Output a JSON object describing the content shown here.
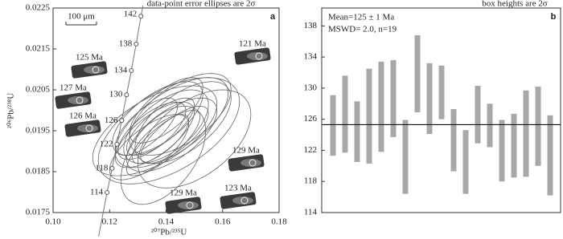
{
  "chart_data": [
    {
      "type": "concordia",
      "title": "data-point error ellipses are 2σ",
      "panel_label": "a",
      "xlabel": "²⁰⁷Pb/²³⁵U",
      "ylabel": "²⁰⁶Pb/²³⁸U",
      "xlim": [
        0.1,
        0.18
      ],
      "ylim": [
        0.0175,
        0.0225
      ],
      "xticks": [
        {
          "value": 0.1,
          "label": "0.10"
        },
        0.12,
        0.14,
        0.16,
        0.18
      ],
      "yticks": [
        0.0175,
        0.0185,
        0.0195,
        0.0205,
        0.0215,
        0.0225
      ],
      "scale_bar": "100 μm",
      "concordia": {
        "ages": [
          114,
          118,
          122,
          126,
          130,
          134,
          138,
          142
        ],
        "x": [
          0.1191,
          0.1209,
          0.1226,
          0.1243,
          0.126,
          0.1277,
          0.1294,
          0.1311
        ],
        "y": [
          0.01799,
          0.01858,
          0.01917,
          0.01975,
          0.02038,
          0.02097,
          0.02162,
          0.0223
        ]
      },
      "ellipses": {
        "x": [
          0.135,
          0.14,
          0.138,
          0.142,
          0.136,
          0.145,
          0.139,
          0.133,
          0.141,
          0.137,
          0.143,
          0.134,
          0.146,
          0.139,
          0.14,
          0.136,
          0.15,
          0.138,
          0.142
        ],
        "y": [
          0.0195,
          0.0196,
          0.0193,
          0.0197,
          0.0194,
          0.0199,
          0.0192,
          0.0196,
          0.0195,
          0.0198,
          0.0194,
          0.0191,
          0.0197,
          0.0189,
          0.02,
          0.0195,
          0.0193,
          0.0196,
          0.0194
        ],
        "sx": [
          0.012,
          0.015,
          0.01,
          0.02,
          0.014,
          0.018,
          0.013,
          0.011,
          0.025,
          0.016,
          0.012,
          0.014,
          0.017,
          0.015,
          0.013,
          0.022,
          0.02,
          0.012,
          0.016
        ],
        "sy": [
          0.0007,
          0.0009,
          0.0006,
          0.0011,
          0.0008,
          0.001,
          0.0008,
          0.0007,
          0.0013,
          0.0009,
          0.0007,
          0.0008,
          0.001,
          0.0012,
          0.0008,
          0.0011,
          0.0012,
          0.0007,
          0.0009
        ],
        "rho": [
          0.7,
          0.6,
          0.75,
          0.65,
          0.7,
          0.6,
          0.8,
          0.7,
          0.55,
          0.65,
          0.75,
          0.7,
          0.6,
          0.5,
          0.7,
          0.6,
          0.5,
          0.75,
          0.65
        ]
      },
      "grains": [
        "125 Ma",
        "127 Ma",
        "126 Ma",
        "121 Ma",
        "129 Ma",
        "129 Ma",
        "123 Ma"
      ],
      "color": "#666666"
    },
    {
      "type": "box",
      "title": "box heights are 2σ",
      "panel_label": "b",
      "annotations": [
        "Mean=125 ± 1 Ma",
        "MSWD= 2.0, n=19"
      ],
      "ylim": [
        114,
        140.3
      ],
      "yticks": [
        114,
        118,
        122,
        126,
        130,
        134,
        138
      ],
      "low": [
        121.3,
        121.7,
        120.5,
        120.3,
        121.8,
        123.7,
        116.4,
        126.9,
        124.1,
        126.0,
        119.3,
        116.4,
        122.9,
        122.4,
        118.0,
        118.5,
        118.6,
        120.0,
        116.2
      ],
      "high": [
        129.1,
        131.6,
        128.3,
        132.5,
        133.4,
        133.6,
        125.9,
        136.8,
        133.2,
        132.9,
        127.3,
        124.6,
        130.3,
        128.0,
        125.9,
        126.7,
        129.7,
        130.2,
        126.5
      ],
      "mean_line": 125.3,
      "color": "#a8a8a8"
    }
  ]
}
